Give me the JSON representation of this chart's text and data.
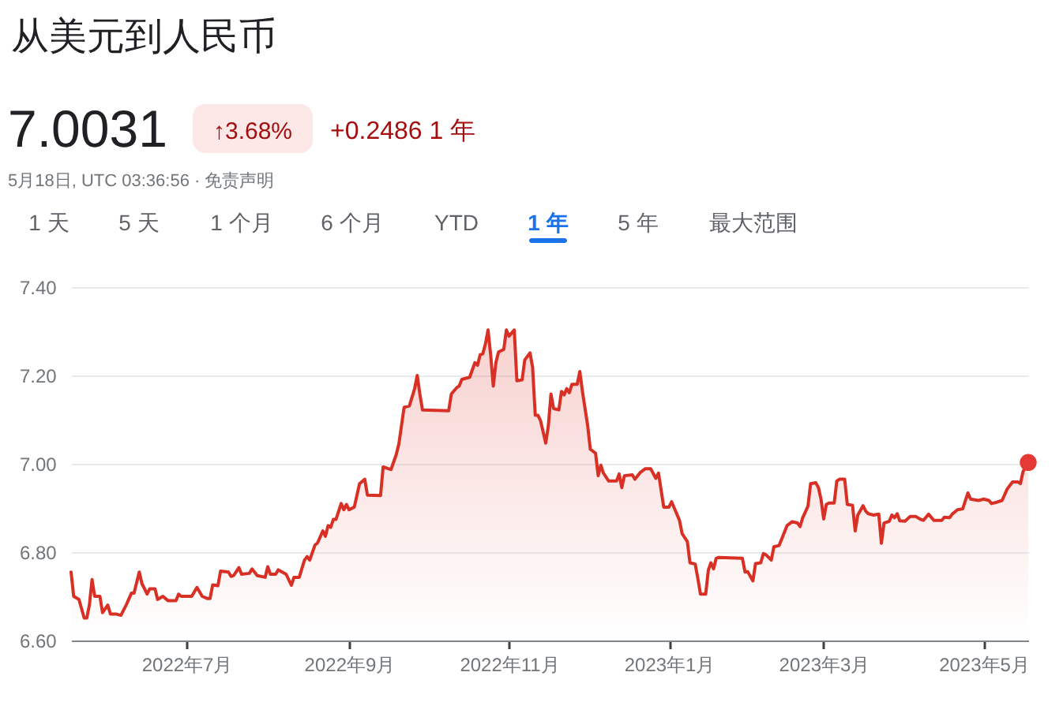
{
  "chart_data": {
    "type": "area",
    "title": "从美元到人民币",
    "annotations": [
      "7.0031",
      "↑3.68%",
      "+0.2486 1 年",
      "5月18日, UTC 03:36:56 · 免责声明",
      "1 天",
      "5 天",
      "1 个月",
      "6 个月",
      "YTD",
      "1 年",
      "5 年",
      "最大范围"
    ],
    "series": [
      {
        "color": "#d93025",
        "x": [
          "2022-05-18",
          "2022-05-19",
          "2022-05-21",
          "2022-05-23",
          "2022-05-24",
          "2022-05-25",
          "2022-05-26",
          "2022-05-27",
          "2022-05-29",
          "2022-05-30",
          "2022-06-01",
          "2022-06-02",
          "2022-06-04",
          "2022-06-06",
          "2022-06-08",
          "2022-06-10",
          "2022-06-11",
          "2022-06-13",
          "2022-06-14",
          "2022-06-16",
          "2022-06-17",
          "2022-06-19",
          "2022-06-20",
          "2022-06-22",
          "2022-06-24",
          "2022-06-27",
          "2022-06-28",
          "2022-06-29",
          "2022-07-03",
          "2022-07-05",
          "2022-07-07",
          "2022-07-09",
          "2022-07-10",
          "2022-07-11",
          "2022-07-13",
          "2022-07-14",
          "2022-07-17",
          "2022-07-18",
          "2022-07-19",
          "2022-07-21",
          "2022-07-22",
          "2022-07-25",
          "2022-07-26",
          "2022-07-28",
          "2022-07-31",
          "2022-08-01",
          "2022-08-02",
          "2022-08-04",
          "2022-08-05",
          "2022-08-08",
          "2022-08-10",
          "2022-08-11",
          "2022-08-13",
          "2022-08-15",
          "2022-08-16",
          "2022-08-17",
          "2022-08-19",
          "2022-08-20",
          "2022-08-22",
          "2022-08-23",
          "2022-08-24",
          "2022-08-25",
          "2022-08-26",
          "2022-08-27",
          "2022-08-29",
          "2022-08-30",
          "2022-08-31",
          "2022-09-01",
          "2022-09-03",
          "2022-09-05",
          "2022-09-07",
          "2022-09-08",
          "2022-09-13",
          "2022-09-14",
          "2022-09-17",
          "2022-09-19",
          "2022-09-20",
          "2022-09-22",
          "2022-09-24",
          "2022-09-26",
          "2022-09-27",
          "2022-09-28",
          "2022-09-29",
          "2022-10-09",
          "2022-10-10",
          "2022-10-12",
          "2022-10-13",
          "2022-10-14",
          "2022-10-17",
          "2022-10-19",
          "2022-10-20",
          "2022-10-21",
          "2022-10-22",
          "2022-10-23",
          "2022-10-24",
          "2022-10-25",
          "2022-10-26",
          "2022-10-27",
          "2022-10-28",
          "2022-10-30",
          "2022-10-31",
          "2022-11-01",
          "2022-11-03",
          "2022-11-04",
          "2022-11-06",
          "2022-11-07",
          "2022-11-09",
          "2022-11-10",
          "2022-11-11",
          "2022-11-12",
          "2022-11-13",
          "2022-11-15",
          "2022-11-16",
          "2022-11-17",
          "2022-11-18",
          "2022-11-20",
          "2022-11-21",
          "2022-11-22",
          "2022-11-23",
          "2022-11-24",
          "2022-11-25",
          "2022-11-27",
          "2022-11-28",
          "2022-11-29",
          "2022-12-01",
          "2022-12-02",
          "2022-12-04",
          "2022-12-05",
          "2022-12-06",
          "2022-12-07",
          "2022-12-09",
          "2022-12-12",
          "2022-12-13",
          "2022-12-14",
          "2022-12-15",
          "2022-12-18",
          "2022-12-19",
          "2022-12-21",
          "2022-12-23",
          "2022-12-25",
          "2022-12-27",
          "2022-12-28",
          "2022-12-30",
          "2023-01-01",
          "2023-01-02",
          "2023-01-04",
          "2023-01-05",
          "2023-01-06",
          "2023-01-08",
          "2023-01-09",
          "2023-01-11",
          "2023-01-12",
          "2023-01-13",
          "2023-01-15",
          "2023-01-16",
          "2023-01-17",
          "2023-01-18",
          "2023-01-19",
          "2023-01-20",
          "2023-01-29",
          "2023-01-30",
          "2023-01-31",
          "2023-02-02",
          "2023-02-03",
          "2023-02-05",
          "2023-02-06",
          "2023-02-07",
          "2023-02-09",
          "2023-02-10",
          "2023-02-12",
          "2023-02-13",
          "2023-02-15",
          "2023-02-17",
          "2023-02-19",
          "2023-02-20",
          "2023-02-21",
          "2023-02-23",
          "2023-02-24",
          "2023-02-26",
          "2023-02-27",
          "2023-02-28",
          "2023-03-01",
          "2023-03-02",
          "2023-03-03",
          "2023-03-05",
          "2023-03-06",
          "2023-03-07",
          "2023-03-09",
          "2023-03-10",
          "2023-03-12",
          "2023-03-13",
          "2023-03-14",
          "2023-03-16",
          "2023-03-17",
          "2023-03-18",
          "2023-03-20",
          "2023-03-22",
          "2023-03-23",
          "2023-03-24",
          "2023-03-26",
          "2023-03-27",
          "2023-03-28",
          "2023-03-29",
          "2023-03-30",
          "2023-04-01",
          "2023-04-03",
          "2023-04-05",
          "2023-04-07",
          "2023-04-08",
          "2023-04-10",
          "2023-04-12",
          "2023-04-15",
          "2023-04-16",
          "2023-04-18",
          "2023-04-19",
          "2023-04-21",
          "2023-04-23",
          "2023-04-25",
          "2023-04-26",
          "2023-04-29",
          "2023-05-01",
          "2023-05-03",
          "2023-05-04",
          "2023-05-06",
          "2023-05-08",
          "2023-05-10",
          "2023-05-12",
          "2023-05-14",
          "2023-05-15",
          "2023-05-16",
          "2023-05-18"
        ],
        "values": [
          6.755,
          6.7,
          6.693,
          6.651,
          6.651,
          6.681,
          6.738,
          6.7,
          6.7,
          6.663,
          6.68,
          6.66,
          6.66,
          6.657,
          6.68,
          6.707,
          6.707,
          6.755,
          6.729,
          6.705,
          6.717,
          6.717,
          6.693,
          6.7,
          6.69,
          6.69,
          6.705,
          6.7,
          6.7,
          6.72,
          6.7,
          6.695,
          6.695,
          6.726,
          6.724,
          6.757,
          6.755,
          6.745,
          6.747,
          6.765,
          6.75,
          6.752,
          6.762,
          6.747,
          6.743,
          6.767,
          6.75,
          6.75,
          6.76,
          6.75,
          6.725,
          6.743,
          6.743,
          6.782,
          6.79,
          6.782,
          6.816,
          6.821,
          6.848,
          6.836,
          6.86,
          6.856,
          6.874,
          6.874,
          6.91,
          6.896,
          6.908,
          6.896,
          6.902,
          6.955,
          6.965,
          6.929,
          6.928,
          6.993,
          6.987,
          7.021,
          7.045,
          7.128,
          7.131,
          7.17,
          7.2,
          7.158,
          7.122,
          7.12,
          7.158,
          7.172,
          7.176,
          7.191,
          7.196,
          7.229,
          7.223,
          7.247,
          7.249,
          7.271,
          7.303,
          7.247,
          7.176,
          7.229,
          7.253,
          7.259,
          7.303,
          7.289,
          7.303,
          7.188,
          7.19,
          7.235,
          7.251,
          7.218,
          7.11,
          7.11,
          7.098,
          7.047,
          7.086,
          7.158,
          7.125,
          7.122,
          7.164,
          7.156,
          7.17,
          7.161,
          7.18,
          7.18,
          7.209,
          7.164,
          7.086,
          7.033,
          7.024,
          6.973,
          6.997,
          6.979,
          6.961,
          6.961,
          6.977,
          6.946,
          6.973,
          6.975,
          6.965,
          6.98,
          6.989,
          6.989,
          6.967,
          6.979,
          6.902,
          6.902,
          6.914,
          6.886,
          6.872,
          6.842,
          6.824,
          6.776,
          6.773,
          6.741,
          6.705,
          6.705,
          6.759,
          6.776,
          6.762,
          6.786,
          6.788,
          6.786,
          6.755,
          6.756,
          6.735,
          6.774,
          6.776,
          6.797,
          6.794,
          6.782,
          6.812,
          6.815,
          6.83,
          6.86,
          6.869,
          6.866,
          6.858,
          6.878,
          6.904,
          6.955,
          6.957,
          6.946,
          6.919,
          6.875,
          6.908,
          6.911,
          6.911,
          6.961,
          6.965,
          6.965,
          6.908,
          6.906,
          6.848,
          6.884,
          6.905,
          6.893,
          6.887,
          6.884,
          6.886,
          6.82,
          6.866,
          6.87,
          6.884,
          6.878,
          6.887,
          6.871,
          6.87,
          6.881,
          6.881,
          6.874,
          6.872,
          6.886,
          6.872,
          6.872,
          6.879,
          6.878,
          6.886,
          6.896,
          6.898,
          6.934,
          6.92,
          6.917,
          6.92,
          6.917,
          6.91,
          6.913,
          6.917,
          6.943,
          6.959,
          6.959,
          6.955,
          6.982,
          7.003
        ]
      },
      {
        "type": "scatter",
        "color": "#e53935",
        "x": [
          "2023-05-18"
        ],
        "values": [
          7.003
        ]
      }
    ],
    "xlim": [
      "2022-05-18",
      "2023-05-18"
    ],
    "xticks": [
      {
        "value": "2022-07-01",
        "label": "2022年7月"
      },
      {
        "value": "2022-09-01",
        "label": "2022年9月"
      },
      {
        "value": "2022-11-01",
        "label": "2022年11月"
      },
      {
        "value": "2023-01-01",
        "label": "2023年1月"
      },
      {
        "value": "2023-03-01",
        "label": "2023年3月"
      },
      {
        "value": "2023-05-01",
        "label": "2023年5月"
      }
    ],
    "ylim": [
      6.6,
      7.4
    ],
    "yticks": [
      {
        "value": 6.6,
        "label": "6.60"
      },
      {
        "value": 6.8,
        "label": "6.80"
      },
      {
        "value": 7.0,
        "label": "7.00"
      },
      {
        "value": 7.2,
        "label": "7.20"
      },
      {
        "value": 7.4,
        "label": "7.40"
      }
    ],
    "grid": "y"
  }
}
